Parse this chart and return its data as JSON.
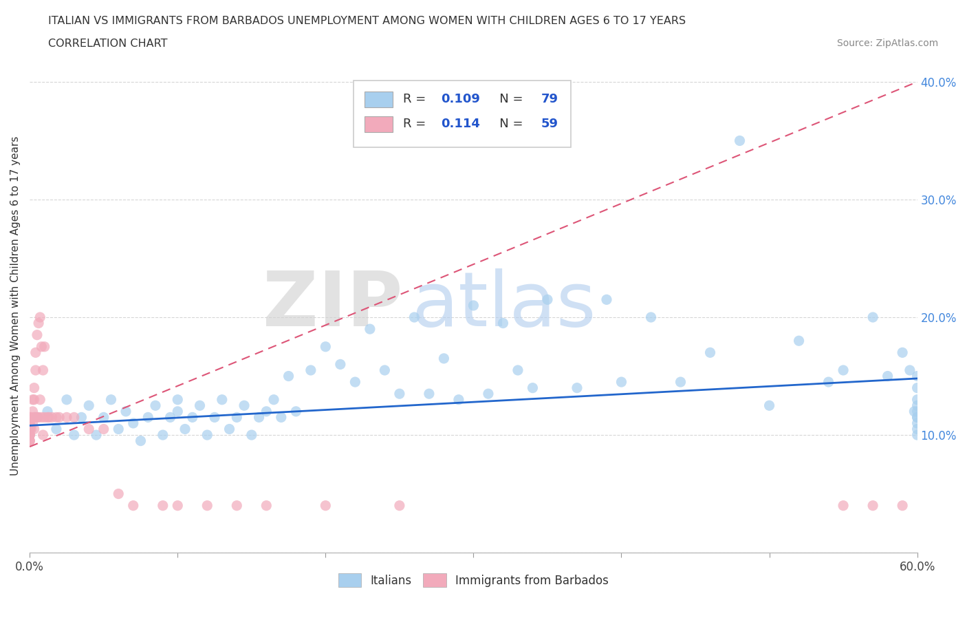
{
  "title_line1": "ITALIAN VS IMMIGRANTS FROM BARBADOS UNEMPLOYMENT AMONG WOMEN WITH CHILDREN AGES 6 TO 17 YEARS",
  "title_line2": "CORRELATION CHART",
  "source_text": "Source: ZipAtlas.com",
  "watermark_zip": "ZIP",
  "watermark_atlas": "atlas",
  "ylabel": "Unemployment Among Women with Children Ages 6 to 17 years",
  "xlim": [
    0.0,
    0.6
  ],
  "ylim": [
    0.0,
    0.42
  ],
  "xtick_positions": [
    0.0,
    0.1,
    0.2,
    0.3,
    0.4,
    0.5,
    0.6
  ],
  "xtick_labels": [
    "0.0%",
    "",
    "",
    "",
    "",
    "",
    "60.0%"
  ],
  "ytick_positions": [
    0.0,
    0.1,
    0.2,
    0.3,
    0.4
  ],
  "ytick_labels_right": [
    "",
    "10.0%",
    "20.0%",
    "30.0%",
    "40.0%"
  ],
  "blue_color": "#A8CFEE",
  "pink_color": "#F2AABB",
  "trend_blue_color": "#2266CC",
  "trend_pink_color": "#DD5577",
  "legend_R_blue": "0.109",
  "legend_N_blue": "79",
  "legend_R_pink": "0.114",
  "legend_N_pink": "59",
  "blue_x": [
    0.005,
    0.012,
    0.018,
    0.025,
    0.03,
    0.035,
    0.04,
    0.045,
    0.05,
    0.055,
    0.06,
    0.065,
    0.07,
    0.075,
    0.08,
    0.085,
    0.09,
    0.095,
    0.1,
    0.1,
    0.105,
    0.11,
    0.115,
    0.12,
    0.125,
    0.13,
    0.135,
    0.14,
    0.145,
    0.15,
    0.155,
    0.16,
    0.165,
    0.17,
    0.175,
    0.18,
    0.19,
    0.2,
    0.21,
    0.22,
    0.23,
    0.24,
    0.25,
    0.26,
    0.27,
    0.28,
    0.29,
    0.3,
    0.31,
    0.32,
    0.33,
    0.34,
    0.35,
    0.37,
    0.39,
    0.4,
    0.42,
    0.44,
    0.46,
    0.48,
    0.5,
    0.52,
    0.54,
    0.55,
    0.57,
    0.58,
    0.59,
    0.595,
    0.598,
    0.6,
    0.6,
    0.6,
    0.6,
    0.6,
    0.6,
    0.6,
    0.6,
    0.6,
    0.6
  ],
  "blue_y": [
    0.115,
    0.12,
    0.105,
    0.13,
    0.1,
    0.115,
    0.125,
    0.1,
    0.115,
    0.13,
    0.105,
    0.12,
    0.11,
    0.095,
    0.115,
    0.125,
    0.1,
    0.115,
    0.12,
    0.13,
    0.105,
    0.115,
    0.125,
    0.1,
    0.115,
    0.13,
    0.105,
    0.115,
    0.125,
    0.1,
    0.115,
    0.12,
    0.13,
    0.115,
    0.15,
    0.12,
    0.155,
    0.175,
    0.16,
    0.145,
    0.19,
    0.155,
    0.135,
    0.2,
    0.135,
    0.165,
    0.13,
    0.21,
    0.135,
    0.195,
    0.155,
    0.14,
    0.215,
    0.14,
    0.215,
    0.145,
    0.2,
    0.145,
    0.17,
    0.35,
    0.125,
    0.18,
    0.145,
    0.155,
    0.2,
    0.15,
    0.17,
    0.155,
    0.12,
    0.105,
    0.115,
    0.125,
    0.13,
    0.1,
    0.115,
    0.12,
    0.11,
    0.14,
    0.15
  ],
  "pink_x": [
    0.0,
    0.0,
    0.0,
    0.0,
    0.0,
    0.0,
    0.0,
    0.0,
    0.0,
    0.0,
    0.0,
    0.0,
    0.0,
    0.0,
    0.001,
    0.001,
    0.002,
    0.002,
    0.002,
    0.003,
    0.003,
    0.003,
    0.003,
    0.004,
    0.004,
    0.004,
    0.005,
    0.005,
    0.006,
    0.006,
    0.007,
    0.007,
    0.008,
    0.008,
    0.009,
    0.009,
    0.01,
    0.01,
    0.012,
    0.013,
    0.015,
    0.018,
    0.02,
    0.025,
    0.03,
    0.04,
    0.05,
    0.06,
    0.07,
    0.09,
    0.1,
    0.12,
    0.14,
    0.16,
    0.2,
    0.25,
    0.55,
    0.57,
    0.59
  ],
  "pink_y": [
    0.105,
    0.11,
    0.115,
    0.1,
    0.105,
    0.095,
    0.11,
    0.1,
    0.105,
    0.095,
    0.1,
    0.105,
    0.1,
    0.095,
    0.115,
    0.105,
    0.12,
    0.13,
    0.11,
    0.14,
    0.115,
    0.13,
    0.105,
    0.155,
    0.17,
    0.115,
    0.185,
    0.115,
    0.195,
    0.115,
    0.2,
    0.13,
    0.175,
    0.115,
    0.155,
    0.1,
    0.175,
    0.115,
    0.115,
    0.115,
    0.115,
    0.115,
    0.115,
    0.115,
    0.115,
    0.105,
    0.105,
    0.05,
    0.04,
    0.04,
    0.04,
    0.04,
    0.04,
    0.04,
    0.04,
    0.04,
    0.04,
    0.04,
    0.04
  ]
}
